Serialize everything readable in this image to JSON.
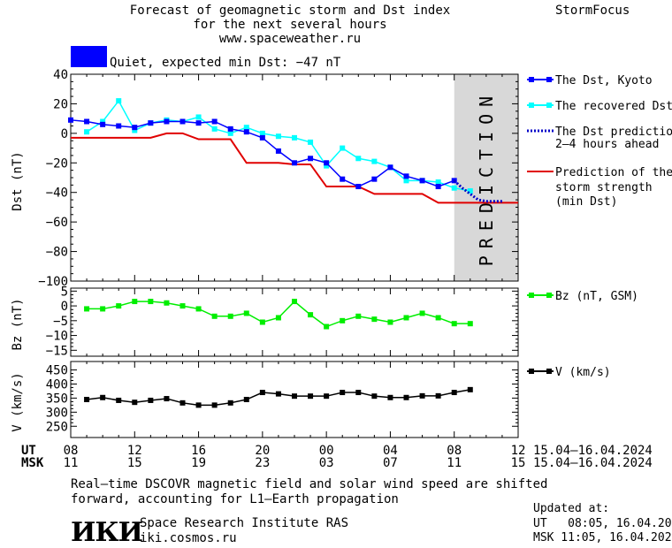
{
  "header": {
    "title_line1": "Forecast of geomagnetic storm and Dst index",
    "title_line2": "for the next several hours",
    "url": "www.spaceweather.ru",
    "brand": "StormFocus"
  },
  "status": {
    "text": "Quiet, expected min Dst: −47 nT",
    "color": "#0000ff"
  },
  "prediction_label": "PREDICTION",
  "legend": {
    "dst_kyoto": "The Dst, Kyoto",
    "dst_recovered": "The recovered Dst",
    "dst_prediction_1": "The Dst prediction",
    "dst_prediction_2": "2–4 hours ahead",
    "storm_1": "Prediction of the",
    "storm_2": "storm strength",
    "storm_3": "(min Dst)",
    "bz": "Bz (nT, GSM)",
    "v": "V (km/s)"
  },
  "time_axis": {
    "ut_label": "UT",
    "msk_label": "MSK",
    "ut_ticks": [
      "08",
      "12",
      "16",
      "20",
      "00",
      "04",
      "08",
      "12"
    ],
    "msk_ticks": [
      "11",
      "15",
      "19",
      "23",
      "03",
      "07",
      "11",
      "15"
    ],
    "date_range_ut": "15.04–16.04.2024",
    "date_range_msk": "15.04–16.04.2024"
  },
  "footer": {
    "note_line1": "Real–time DSCOVR magnetic field and solar wind speed are shifted",
    "note_line2": "forward, accounting for L1–Earth propagation",
    "logo_text": "ИКИ",
    "institute": "Space Research Institute RAS",
    "site": "iki.cosmos.ru",
    "updated_label": "Updated at:",
    "updated_ut": "UT   08:05, 16.04.2024",
    "updated_msk": "MSK 11:05, 16.04.2024"
  },
  "colors": {
    "dst_kyoto": "#0000ff",
    "dst_recovered": "#00ffff",
    "dst_prediction": "#0000c8",
    "storm": "#e00000",
    "bz": "#00ee00",
    "v": "#000000",
    "prediction_band": "#d8d8d8"
  },
  "chart_data": [
    {
      "type": "line",
      "name": "dst",
      "ylabel": "Dst (nT)",
      "xlim": [
        8,
        36
      ],
      "ylim": [
        -100,
        40
      ],
      "yticks": [
        40,
        20,
        0,
        -20,
        -40,
        -60,
        -80,
        -100
      ],
      "prediction_region": [
        32,
        36
      ],
      "series": [
        {
          "name": "The Dst, Kyoto",
          "x": [
            8,
            9,
            10,
            11,
            12,
            13,
            14,
            15,
            16,
            17,
            18,
            19,
            20,
            21,
            22,
            23,
            24,
            25,
            26,
            27,
            28,
            29,
            30,
            31,
            32
          ],
          "y": [
            9,
            8,
            6,
            5,
            4,
            7,
            8,
            8,
            7,
            8,
            3,
            1,
            -3,
            -12,
            -20,
            -17,
            -20,
            -31,
            -36,
            -31,
            -23,
            -29,
            -32,
            -36,
            -32
          ]
        },
        {
          "name": "The recovered Dst",
          "x": [
            9,
            10,
            11,
            12,
            13,
            14,
            15,
            16,
            17,
            18,
            19,
            20,
            21,
            22,
            23,
            24,
            25,
            26,
            27,
            28,
            29,
            30,
            31,
            32,
            33
          ],
          "y": [
            1,
            8,
            22,
            2,
            7,
            9,
            8,
            11,
            3,
            0,
            4,
            0,
            -2,
            -3,
            -6,
            -22,
            -10,
            -17,
            -19,
            -23,
            -32,
            -32,
            -33,
            -37,
            -39
          ]
        },
        {
          "name": "The Dst prediction 2–4 hours ahead",
          "x": [
            32,
            32.5,
            33,
            33.5,
            34,
            34.5,
            35
          ],
          "y": [
            -32,
            -37,
            -41,
            -45,
            -46,
            -46,
            -46
          ]
        },
        {
          "name": "Prediction of the storm strength (min Dst)",
          "x": [
            8,
            13,
            14,
            15,
            16,
            18,
            19,
            21,
            22,
            23,
            24,
            26,
            27,
            29,
            30,
            31,
            36
          ],
          "y": [
            -3,
            -3,
            0,
            0,
            -4,
            -4,
            -20,
            -20,
            -21,
            -21,
            -36,
            -36,
            -41,
            -41,
            -41,
            -47,
            -47
          ]
        }
      ]
    },
    {
      "type": "line",
      "name": "bz",
      "ylabel": "Bz (nT)",
      "xlim": [
        8,
        36
      ],
      "ylim": [
        -17,
        6
      ],
      "yticks": [
        5,
        0,
        -5,
        -10,
        -15
      ],
      "series": [
        {
          "name": "Bz (nT, GSM)",
          "x": [
            9,
            10,
            11,
            12,
            13,
            14,
            15,
            16,
            17,
            18,
            19,
            20,
            21,
            22,
            23,
            24,
            25,
            26,
            27,
            28,
            29,
            30,
            31,
            32,
            33
          ],
          "y": [
            -1,
            -1,
            0,
            1.5,
            1.5,
            1,
            0,
            -1,
            -3.5,
            -3.5,
            -2.5,
            -5.5,
            -4,
            1.5,
            -3,
            -7,
            -5,
            -3.5,
            -4.5,
            -5.5,
            -4,
            -2.5,
            -4,
            -6,
            -6
          ]
        }
      ]
    },
    {
      "type": "line",
      "name": "v",
      "ylabel": "V (km/s)",
      "xlim": [
        8,
        36
      ],
      "ylim": [
        210,
        480
      ],
      "yticks": [
        450,
        400,
        350,
        300,
        250
      ],
      "series": [
        {
          "name": "V (km/s)",
          "x": [
            9,
            10,
            11,
            12,
            13,
            14,
            15,
            16,
            17,
            18,
            19,
            20,
            21,
            22,
            23,
            24,
            25,
            26,
            27,
            28,
            29,
            30,
            31,
            32,
            33
          ],
          "y": [
            345,
            352,
            342,
            335,
            342,
            348,
            333,
            325,
            325,
            333,
            345,
            370,
            365,
            357,
            357,
            357,
            370,
            370,
            357,
            352,
            352,
            358,
            358,
            370,
            380
          ]
        }
      ]
    }
  ]
}
